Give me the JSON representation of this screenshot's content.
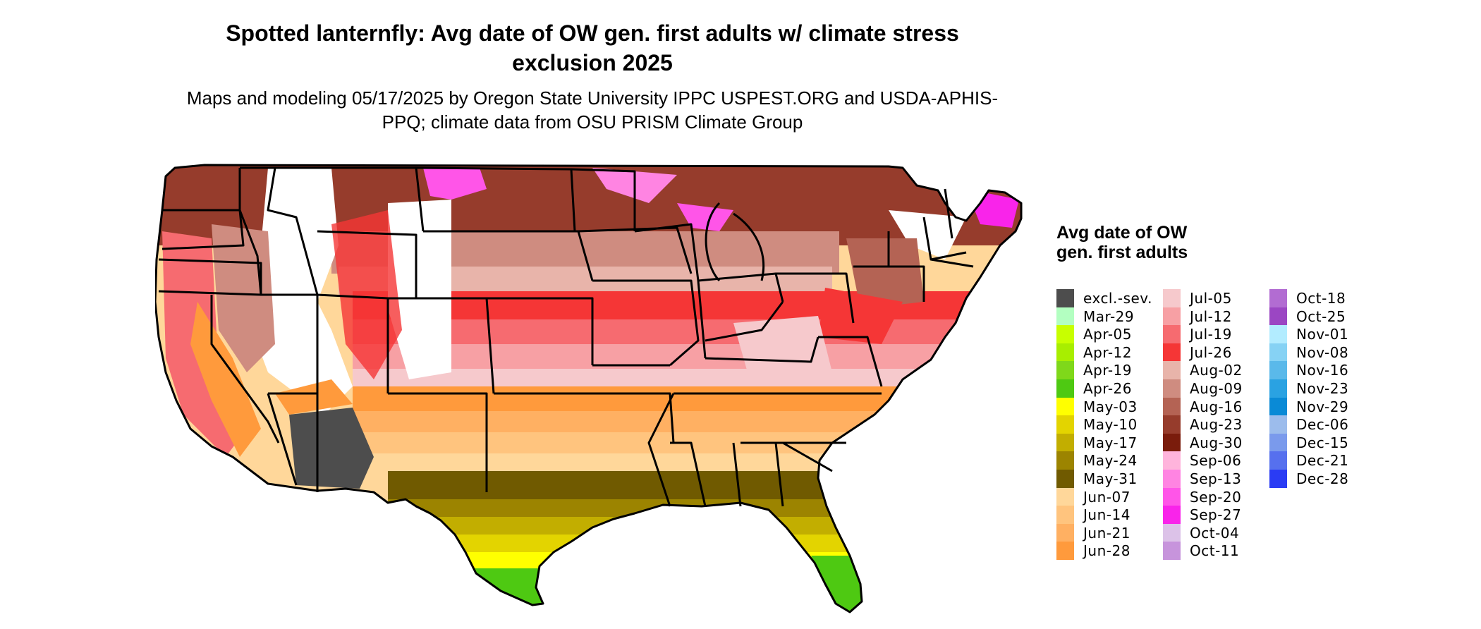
{
  "title": "Spotted lanternfly: Avg date of OW gen. first adults w/ climate stress exclusion 2025",
  "subtitle": "Maps and modeling 05/17/2025 by Oregon State University IPPC USPEST.ORG and USDA-APHIS-PPQ; climate data from OSU PRISM Climate Group",
  "legend": {
    "title": "Avg date of OW gen. first adults",
    "columns": [
      [
        {
          "label": "excl.-sev.",
          "color": "#4d4d4d"
        },
        {
          "label": "Mar-29",
          "color": "#b3ffc1"
        },
        {
          "label": "Apr-05",
          "color": "#c8ff00"
        },
        {
          "label": "Apr-12",
          "color": "#a8ee00"
        },
        {
          "label": "Apr-19",
          "color": "#7fd81a"
        },
        {
          "label": "Apr-26",
          "color": "#4ec912"
        },
        {
          "label": "May-03",
          "color": "#ffff00"
        },
        {
          "label": "May-10",
          "color": "#e3d400"
        },
        {
          "label": "May-17",
          "color": "#c2ae00"
        },
        {
          "label": "May-24",
          "color": "#9c8400"
        },
        {
          "label": "May-31",
          "color": "#705a00"
        },
        {
          "label": "Jun-07",
          "color": "#ffd79a"
        },
        {
          "label": "Jun-14",
          "color": "#ffc47e"
        },
        {
          "label": "Jun-21",
          "color": "#ffb062"
        },
        {
          "label": "Jun-28",
          "color": "#ff9a3c"
        }
      ],
      [
        {
          "label": "Jul-05",
          "color": "#f6c9cc"
        },
        {
          "label": "Jul-12",
          "color": "#f7a0a4"
        },
        {
          "label": "Jul-19",
          "color": "#f66b70"
        },
        {
          "label": "Jul-26",
          "color": "#f53636"
        },
        {
          "label": "Aug-02",
          "color": "#e8b4aa"
        },
        {
          "label": "Aug-09",
          "color": "#cf8c80"
        },
        {
          "label": "Aug-16",
          "color": "#b46354"
        },
        {
          "label": "Aug-23",
          "color": "#963c2c"
        },
        {
          "label": "Aug-30",
          "color": "#7a1c0c"
        },
        {
          "label": "Sep-06",
          "color": "#ffb4dc"
        },
        {
          "label": "Sep-13",
          "color": "#ff84e2"
        },
        {
          "label": "Sep-20",
          "color": "#ff55e8"
        },
        {
          "label": "Sep-27",
          "color": "#f924ea"
        },
        {
          "label": "Oct-04",
          "color": "#dcc2e8"
        },
        {
          "label": "Oct-11",
          "color": "#c794dc"
        }
      ],
      [
        {
          "label": "Oct-18",
          "color": "#b26cd2"
        },
        {
          "label": "Oct-25",
          "color": "#9b46c3"
        },
        {
          "label": "Nov-01",
          "color": "#b2ecff"
        },
        {
          "label": "Nov-08",
          "color": "#86d2f4"
        },
        {
          "label": "Nov-16",
          "color": "#5ab9ea"
        },
        {
          "label": "Nov-23",
          "color": "#2aa2e2"
        },
        {
          "label": "Nov-29",
          "color": "#0a8ad6"
        },
        {
          "label": "Dec-06",
          "color": "#9cbcec"
        },
        {
          "label": "Dec-15",
          "color": "#7a9aec"
        },
        {
          "label": "Dec-21",
          "color": "#5670ee"
        },
        {
          "label": "Dec-28",
          "color": "#2a3cf4"
        }
      ]
    ]
  }
}
